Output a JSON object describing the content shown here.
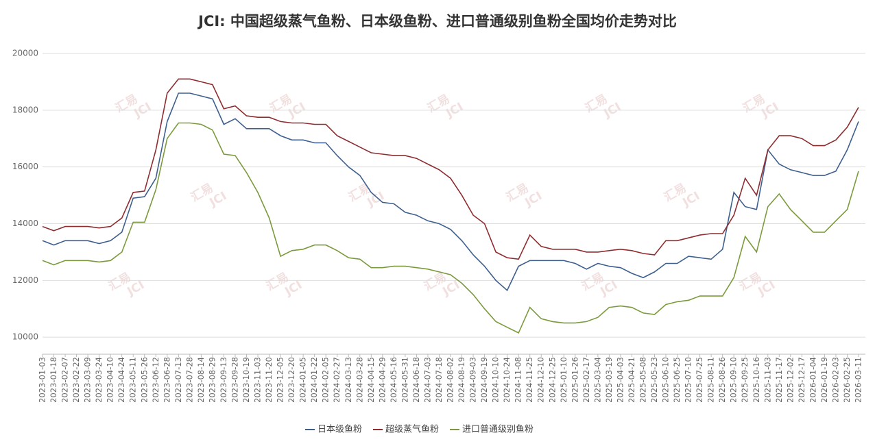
{
  "chart_data": {
    "type": "line",
    "title": "JCI: 中国超级蒸气鱼粉、日本级鱼粉、进口普通级别鱼粉全国均价走势对比",
    "watermark": [
      "汇易",
      "JCI"
    ],
    "categories": [
      "2023-01-03",
      "2023-01-18",
      "2023-02-07",
      "2023-02-22",
      "2023-03-09",
      "2023-03-24",
      "2023-04-10",
      "2023-04-24",
      "2023-05-11",
      "2023-05-26",
      "2023-06-12",
      "2023-06-28",
      "2023-07-13",
      "2023-07-28",
      "2023-08-14",
      "2023-08-29",
      "2023-09-13",
      "2023-09-28",
      "2023-10-19",
      "2023-11-03",
      "2023-11-20",
      "2023-12-05",
      "2023-12-20",
      "2024-01-05",
      "2024-01-22",
      "2024-02-05",
      "2024-02-27",
      "2024-03-13",
      "2024-03-28",
      "2024-04-15",
      "2024-04-29",
      "2024-05-16",
      "2024-05-31",
      "2024-06-18",
      "2024-07-03",
      "2024-07-18",
      "2024-08-02",
      "2024-08-19",
      "2024-09-03",
      "2024-09-19",
      "2024-10-10",
      "2024-10-24",
      "2024-11-08",
      "2024-11-25",
      "2024-12-10",
      "2024-12-25",
      "2025-01-10",
      "2025-01-26",
      "2025-02-17",
      "2025-03-04",
      "2025-03-19",
      "2025-04-03",
      "2025-04-21",
      "2025-05-08",
      "2025-05-23",
      "2025-06-10",
      "2025-06-25",
      "2025-07-10",
      "2025-07-25",
      "2025-08-11",
      "2025-08-26",
      "2025-09-10",
      "2025-09-25",
      "2025-10-16",
      "2025-11-03",
      "2025-11-17",
      "2025-12-02",
      "2025-12-17",
      "2026-01-04",
      "2026-01-19",
      "2026-02-03",
      "2026-02-25",
      "2026-03-11"
    ],
    "series": [
      {
        "name": "日本级鱼粉",
        "color": "#3d5f8f",
        "values": [
          13400,
          13250,
          13400,
          13400,
          13400,
          13300,
          13400,
          13700,
          14900,
          14950,
          15600,
          17600,
          18600,
          18600,
          18500,
          18400,
          17500,
          17700,
          17350,
          17350,
          17350,
          17100,
          16950,
          16950,
          16850,
          16850,
          16400,
          16000,
          15700,
          15100,
          14750,
          14700,
          14400,
          14300,
          14100,
          14000,
          13800,
          13400,
          12900,
          12500,
          12000,
          11650,
          12500,
          12700,
          12700,
          12700,
          12700,
          12600,
          12400,
          12600,
          12500,
          12450,
          12250,
          12100,
          12300,
          12600,
          12600,
          12850,
          12800,
          12750,
          13100,
          15100,
          14600,
          14500,
          16600,
          16100,
          15900,
          15800,
          15700,
          15700,
          15850,
          16600,
          17600
        ]
      },
      {
        "name": "超级蒸气鱼粉",
        "color": "#8e2c2f",
        "values": [
          13900,
          13750,
          13900,
          13900,
          13900,
          13850,
          13900,
          14200,
          15100,
          15150,
          16600,
          18600,
          19100,
          19100,
          19000,
          18900,
          18050,
          18150,
          17800,
          17750,
          17750,
          17600,
          17550,
          17550,
          17500,
          17500,
          17100,
          16900,
          16700,
          16500,
          16450,
          16400,
          16400,
          16300,
          16100,
          15900,
          15600,
          15000,
          14300,
          14000,
          13000,
          12800,
          12750,
          13600,
          13200,
          13100,
          13100,
          13100,
          13000,
          13000,
          13050,
          13100,
          13050,
          12950,
          12900,
          13400,
          13400,
          13500,
          13600,
          13650,
          13650,
          14300,
          15600,
          15000,
          16600,
          17100,
          17100,
          17000,
          16750,
          16750,
          16950,
          17400,
          18100
        ]
      },
      {
        "name": "进口普通级别鱼粉",
        "color": "#7b9a3c",
        "values": [
          12700,
          12550,
          12700,
          12700,
          12700,
          12650,
          12700,
          13000,
          14050,
          14050,
          15200,
          17000,
          17550,
          17550,
          17500,
          17300,
          16450,
          16400,
          15800,
          15100,
          14200,
          12850,
          13050,
          13100,
          13250,
          13250,
          13050,
          12800,
          12750,
          12450,
          12450,
          12500,
          12500,
          12450,
          12400,
          12300,
          12200,
          11900,
          11500,
          11000,
          10550,
          10350,
          10150,
          11050,
          10650,
          10550,
          10500,
          10500,
          10550,
          10700,
          11050,
          11100,
          11050,
          10850,
          10800,
          11150,
          11250,
          11300,
          11450,
          11450,
          11450,
          12100,
          13550,
          13000,
          14600,
          15050,
          14500,
          14100,
          13700,
          13700,
          14100,
          14500,
          15850
        ]
      }
    ],
    "ylim": [
      9400,
      20000
    ],
    "yticks": [
      10000,
      12000,
      14000,
      16000,
      18000,
      20000
    ],
    "grid": true,
    "legend": "bottom"
  }
}
